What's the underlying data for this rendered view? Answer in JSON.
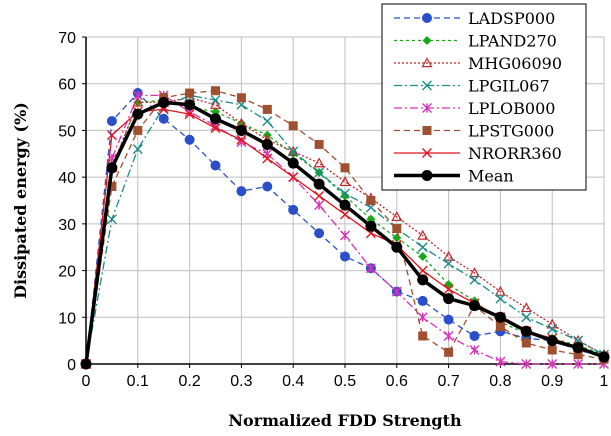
{
  "chart_data": {
    "type": "line",
    "xlabel": "Normalized FDD Strength",
    "ylabel": "Dissipated energy  (%)",
    "xlim": [
      0,
      1
    ],
    "ylim": [
      0,
      70
    ],
    "xticks": [
      0,
      0.1,
      0.2,
      0.3,
      0.4,
      0.5,
      0.6,
      0.7,
      0.8,
      0.9,
      1
    ],
    "xtick_labels": [
      "0",
      "0.1",
      "0.2",
      "0.3",
      "0.4",
      "0.5",
      "0.6",
      "0.7",
      "0.8",
      "0.9",
      "1"
    ],
    "yticks": [
      0,
      10,
      20,
      30,
      40,
      50,
      60,
      70
    ],
    "ytick_labels": [
      "0",
      "10",
      "20",
      "30",
      "40",
      "50",
      "60",
      "70"
    ],
    "grid": true,
    "legend_position": "top-right",
    "x": [
      0,
      0.05,
      0.1,
      0.15,
      0.2,
      0.25,
      0.3,
      0.35,
      0.4,
      0.45,
      0.5,
      0.55,
      0.6,
      0.65,
      0.7,
      0.75,
      0.8,
      0.85,
      0.9,
      0.95,
      1
    ],
    "series": [
      {
        "name": "LADSP000",
        "color": "#2a4fc9",
        "dash": "6,4",
        "marker": "circle",
        "values": [
          0,
          52,
          58,
          52.5,
          48,
          42.5,
          37,
          38,
          33,
          28,
          23,
          20.5,
          15.5,
          13.5,
          9.5,
          6,
          7,
          5.5,
          5,
          3,
          1.5
        ]
      },
      {
        "name": "LPAND270",
        "color": "#1aa81a",
        "dash": "3,3",
        "marker": "diamond",
        "values": [
          0,
          42,
          56,
          56.5,
          55,
          54,
          51.5,
          49,
          45,
          41,
          36,
          31,
          27,
          23,
          17,
          13.5,
          9,
          6.5,
          5.5,
          4,
          2
        ]
      },
      {
        "name": "MHG06090",
        "color": "#c0282d",
        "dash": "2,2",
        "marker": "triangle",
        "values": [
          0,
          42,
          56,
          56,
          57,
          55.5,
          51.5,
          48,
          45.5,
          43,
          39,
          35.5,
          31.5,
          27.5,
          23,
          19.5,
          15.5,
          12,
          8.5,
          5,
          2
        ]
      },
      {
        "name": "LPGIL067",
        "color": "#1b8a8a",
        "dash": "8,3,2,3",
        "marker": "x",
        "values": [
          0,
          31,
          46,
          55,
          57.5,
          56.5,
          55.5,
          52,
          45.5,
          41,
          36.5,
          33.5,
          29,
          25,
          21.5,
          18,
          14,
          10,
          7.5,
          5,
          2
        ]
      },
      {
        "name": "LPLOB000",
        "color": "#d633b8",
        "dash": "8,3,2,3",
        "marker": "star",
        "values": [
          0,
          44,
          57.5,
          57.5,
          54,
          51,
          47.5,
          45,
          40,
          34,
          27.5,
          20.5,
          15.5,
          10,
          6,
          3,
          0.5,
          0,
          0,
          0,
          0
        ]
      },
      {
        "name": "LPSTG000",
        "color": "#a05030",
        "dash": "6,4",
        "marker": "square",
        "values": [
          0,
          38,
          50,
          57,
          58,
          58.5,
          57,
          54.5,
          51,
          47,
          42,
          35,
          29,
          6,
          2.5,
          12.5,
          8,
          4.5,
          3,
          2,
          1
        ]
      },
      {
        "name": "NRORR360",
        "color": "#e0141e",
        "dash": "none",
        "marker": "x",
        "values": [
          0,
          49,
          54,
          54.5,
          53.5,
          50.5,
          48,
          44,
          40,
          36,
          32,
          28,
          25.5,
          20,
          16,
          13,
          10,
          7,
          5.5,
          3.5,
          1.5
        ]
      },
      {
        "name": "Mean",
        "color": "#000000",
        "dash": "none",
        "marker": "circle",
        "bold": true,
        "values": [
          0,
          42,
          53.5,
          56,
          55.5,
          52.5,
          50,
          47,
          43,
          38.5,
          34,
          29.5,
          25,
          18,
          14,
          12.5,
          10,
          7,
          5,
          3.5,
          1.5
        ]
      }
    ]
  }
}
